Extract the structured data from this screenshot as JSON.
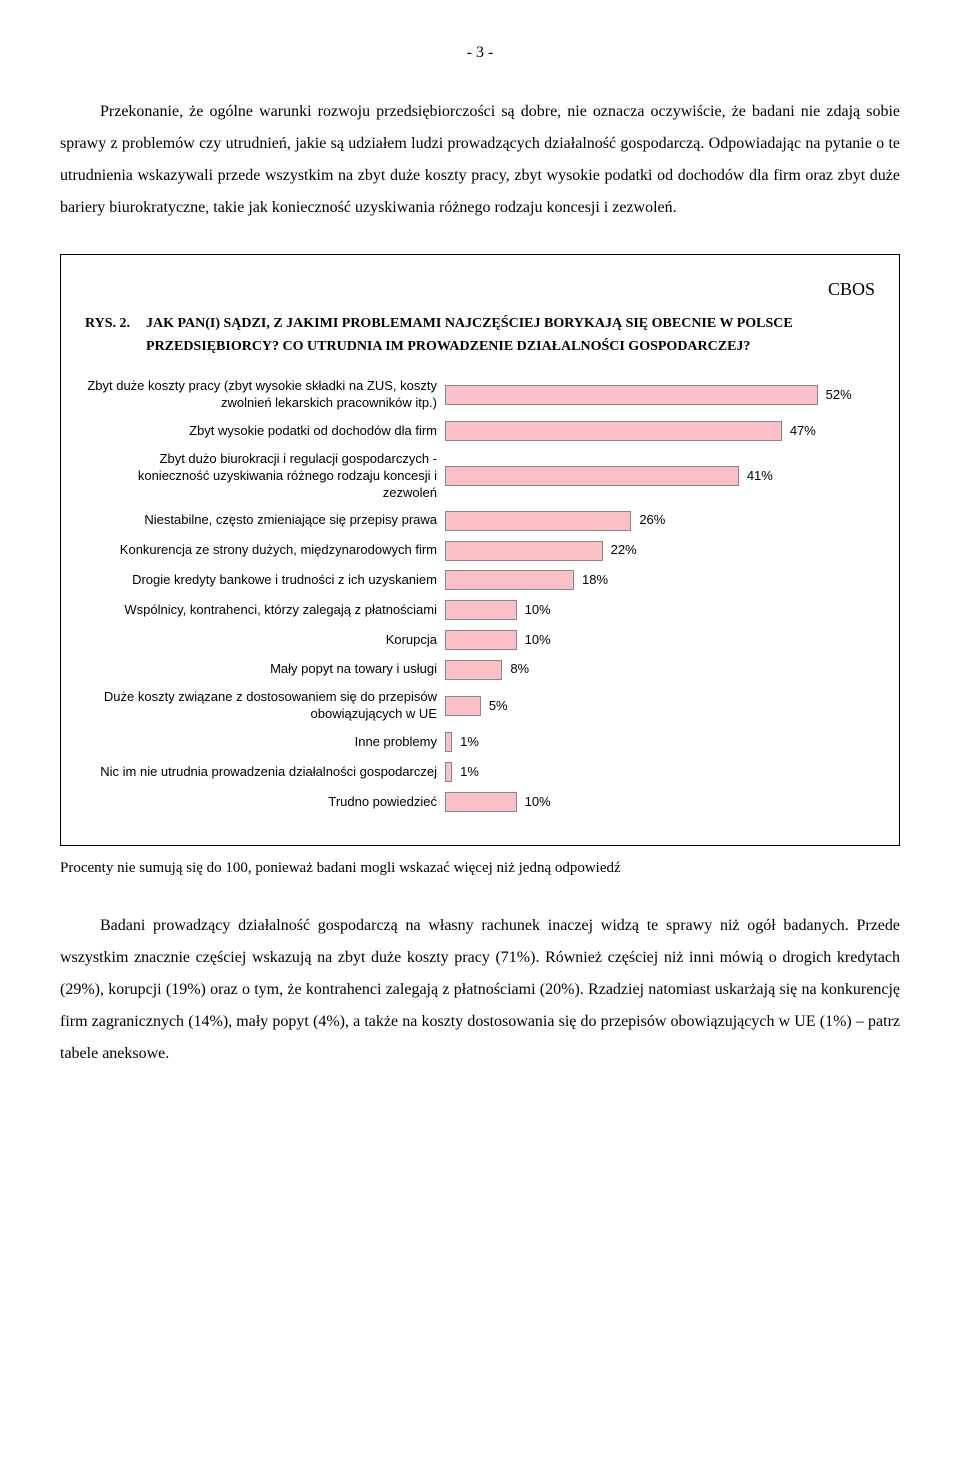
{
  "page_number": "- 3 -",
  "intro_paragraph": "Przekonanie, że ogólne warunki rozwoju przedsiębiorczości są dobre, nie oznacza oczywiście, że badani nie zdają sobie sprawy z problemów czy utrudnień, jakie są udziałem ludzi prowadzących działalność gospodarczą. Odpowiadając na pytanie o te utrudnienia wskazywali przede wszystkim na zbyt duże koszty pracy, zbyt wysokie podatki od dochodów dla firm oraz zbyt duże bariery biurokratyczne, takie jak konieczność uzyskiwania różnego rodzaju koncesji i zezwoleń.",
  "cbos_label": "CBOS",
  "chart_prefix": "RYS. 2.",
  "chart_title": "JAK PAN(I) SĄDZI, Z JAKIMI PROBLEMAMI NAJCZĘŚCIEJ BORYKAJĄ SIĘ OBECNIE W POLSCE PRZEDSIĘBIORCY? CO UTRUDNIA IM PROWADZENIE DZIAŁALNOŚCI GOSPODARCZEJ?",
  "chart": {
    "type": "bar",
    "bar_color": "#fbc0c5",
    "bar_border": "#888888",
    "max_value": 60,
    "items": [
      {
        "label": "Zbyt duże koszty pracy (zbyt wysokie składki na ZUS, koszty zwolnień lekarskich pracowników itp.)",
        "value": 52,
        "display": "52%"
      },
      {
        "label": "Zbyt wysokie podatki od dochodów dla firm",
        "value": 47,
        "display": "47%"
      },
      {
        "label": "Zbyt dużo biurokracji i regulacji gospodarczych - konieczność uzyskiwania różnego rodzaju koncesji i zezwoleń",
        "value": 41,
        "display": "41%"
      },
      {
        "label": "Niestabilne, często zmieniające się przepisy prawa",
        "value": 26,
        "display": "26%"
      },
      {
        "label": "Konkurencja ze strony dużych, międzynarodowych firm",
        "value": 22,
        "display": "22%"
      },
      {
        "label": "Drogie kredyty bankowe i trudności z ich uzyskaniem",
        "value": 18,
        "display": "18%"
      },
      {
        "label": "Wspólnicy, kontrahenci, którzy zalegają z płatnościami",
        "value": 10,
        "display": "10%"
      },
      {
        "label": "Korupcja",
        "value": 10,
        "display": "10%"
      },
      {
        "label": "Mały popyt na towary i usługi",
        "value": 8,
        "display": "8%"
      },
      {
        "label": "Duże koszty związane z dostosowaniem się do przepisów obowiązujących w UE",
        "value": 5,
        "display": "5%"
      },
      {
        "label": "Inne problemy",
        "value": 1,
        "display": "1%"
      },
      {
        "label": "Nic im nie utrudnia prowadzenia działalności gospodarczej",
        "value": 1,
        "display": "1%"
      },
      {
        "label": "Trudno powiedzieć",
        "value": 10,
        "display": "10%"
      }
    ]
  },
  "footnote": "Procenty nie sumują się do 100, ponieważ badani mogli wskazać więcej niż jedną odpowiedź",
  "closing_paragraph": "Badani prowadzący działalność gospodarczą na własny rachunek inaczej widzą te sprawy niż ogół badanych. Przede wszystkim znacznie częściej wskazują na zbyt duże koszty pracy (71%). Również częściej niż inni mówią o drogich kredytach (29%), korupcji (19%) oraz o tym, że kontrahenci zalegają z płatnościami (20%). Rzadziej natomiast uskarżają się na konkurencję firm zagranicznych (14%), mały popyt (4%), a także na koszty dostosowania się do przepisów obowiązujących w UE (1%) – patrz tabele aneksowe."
}
